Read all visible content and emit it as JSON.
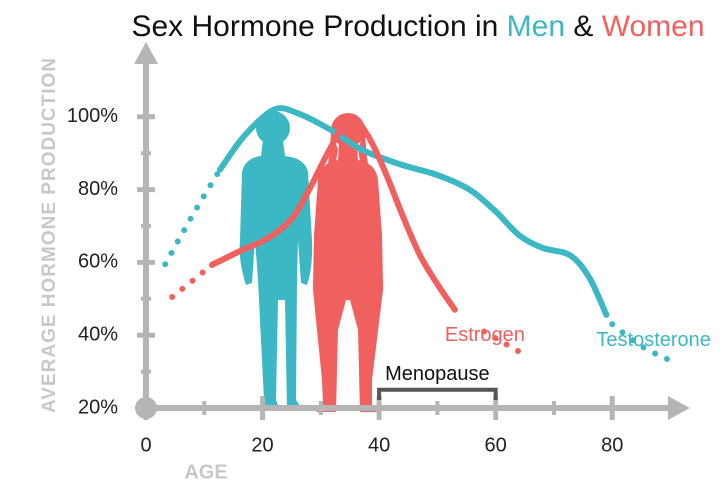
{
  "chart_data": {
    "type": "line",
    "title_parts": [
      "Sex Hormone Production in ",
      "Men",
      " & ",
      "Women"
    ],
    "title_colors": [
      "#111111",
      "#3bb8c4",
      "#111111",
      "#f0605e"
    ],
    "y_label": "AVERAGE HORMONE PRODUCTION",
    "x_label": "AGE",
    "xlim": [
      0,
      93
    ],
    "ylim": [
      20,
      120
    ],
    "xticks": [
      0,
      20,
      40,
      60,
      80
    ],
    "xminor": [
      10,
      30,
      50,
      70
    ],
    "yticks": [
      {
        "value": 20,
        "label": "20%"
      },
      {
        "value": 40,
        "label": "40%"
      },
      {
        "value": 60,
        "label": "60%"
      },
      {
        "value": 80,
        "label": "80%"
      },
      {
        "value": 100,
        "label": "100%"
      }
    ],
    "yminor": [
      30,
      50,
      70,
      90
    ],
    "series": [
      {
        "name": "Testosterone",
        "color": "#3bb8c4",
        "line_style": "solid",
        "x": [
          12.7,
          17,
          22,
          26,
          31.5,
          37,
          43.5,
          50,
          55.5,
          60,
          64,
          68,
          72.7,
          76,
          79
        ],
        "values": [
          85.5,
          95,
          102,
          101,
          96.6,
          91,
          87,
          84,
          80,
          74,
          67.5,
          64,
          62,
          56,
          45.6
        ]
      },
      {
        "name": "Estrogen",
        "color": "#f0605e",
        "line_style": "solid",
        "x": [
          11.3,
          16,
          21,
          25,
          28,
          31.5,
          35,
          38,
          41,
          44,
          47,
          50,
          53
        ],
        "values": [
          59.3,
          63,
          66.7,
          72,
          80,
          91,
          99.7,
          95,
          85,
          73,
          62,
          54,
          47
        ]
      }
    ],
    "extrapolated": [
      {
        "color": "#3bb8c4",
        "line_style": "dotted",
        "x": [
          3.3,
          8,
          12.7
        ],
        "values": [
          59.5,
          73,
          85.5
        ]
      },
      {
        "color": "#3bb8c4",
        "line_style": "dotted",
        "x": [
          80,
          85,
          90
        ],
        "values": [
          43,
          37,
          33
        ]
      },
      {
        "color": "#f0605e",
        "line_style": "dotted",
        "x": [
          4.5,
          8,
          11.3
        ],
        "values": [
          50.5,
          55,
          59.3
        ]
      },
      {
        "color": "#f0605e",
        "line_style": "dotted",
        "x": [
          58,
          65
        ],
        "values": [
          41,
          34.6
        ]
      }
    ],
    "annotation": {
      "label": "Menopause",
      "xrange": [
        40,
        60
      ],
      "y": 25
    }
  }
}
